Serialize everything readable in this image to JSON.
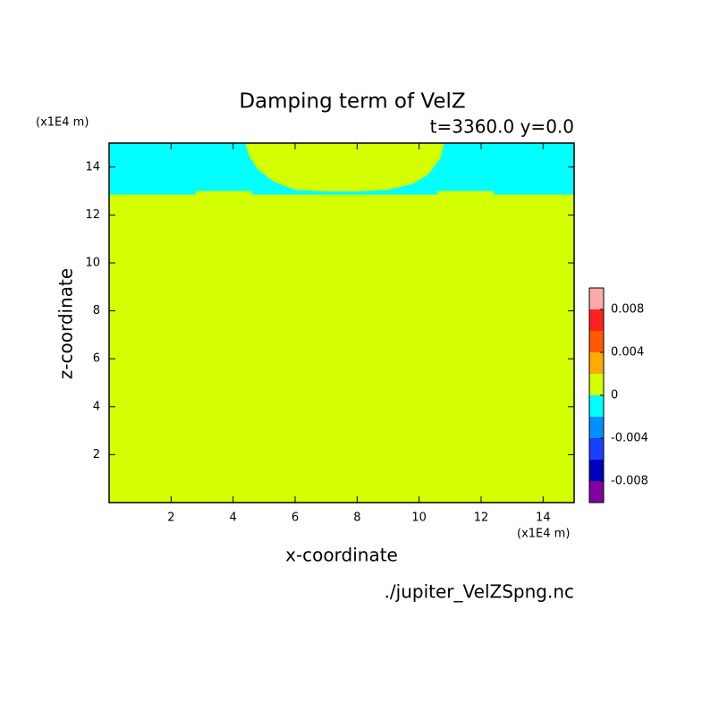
{
  "chart_data": {
    "type": "contour",
    "title": "Damping term of VelZ",
    "subtitle": "t=3360.0 y=0.0",
    "x_label": "x-coordinate",
    "y_label": "z-coordinate",
    "x_unit": "(x1E4 m)",
    "y_unit": "(x1E4 m)",
    "source": "./jupiter_VelZSpng.nc",
    "xlim": [
      0,
      15
    ],
    "ylim": [
      0,
      15
    ],
    "xticks": [
      2,
      4,
      6,
      8,
      10,
      12,
      14
    ],
    "yticks": [
      2,
      4,
      6,
      8,
      10,
      12,
      14
    ],
    "background_color": "#d4ff00",
    "regions": [
      {
        "color": "#00ffff",
        "x": [
          0,
          4.4,
          4.5,
          4.8,
          5.3,
          6,
          7,
          8,
          9,
          9.8,
          10.3,
          10.7,
          10.8,
          15,
          15,
          12.4,
          12.4,
          10.6,
          10.6,
          4.6,
          4.6,
          2.8,
          2.8,
          0
        ],
        "z": [
          15,
          15,
          14.5,
          13.9,
          13.4,
          13.05,
          12.98,
          12.98,
          13.05,
          13.3,
          13.7,
          14.4,
          15,
          15,
          12.85,
          12.85,
          13.0,
          13.0,
          12.85,
          12.85,
          13.0,
          13.0,
          12.85,
          12.85
        ]
      }
    ],
    "colorbar": {
      "levels": [
        -0.01,
        -0.008,
        -0.006,
        -0.004,
        -0.002,
        0,
        0.002,
        0.004,
        0.006,
        0.008,
        0.01
      ],
      "colors": [
        "#8000a0",
        "#0000c0",
        "#1a40ff",
        "#0090ff",
        "#00ffff",
        "#d4ff00",
        "#ffaa00",
        "#ff5a00",
        "#ff2020",
        "#ffaaaa"
      ],
      "ticks": [
        -0.008,
        -0.004,
        0,
        0.004,
        0.008
      ]
    }
  }
}
